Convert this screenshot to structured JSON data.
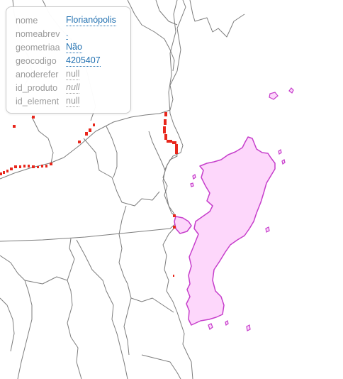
{
  "popup": {
    "rows": [
      {
        "key": "nome",
        "value": "Florianópolis"
      },
      {
        "key": "nomeabrev",
        "value": "."
      },
      {
        "key": "geometriaa",
        "value": "Não"
      },
      {
        "key": "geocodigo",
        "value": "4205407"
      },
      {
        "key": "anoderefer",
        "value": "null"
      },
      {
        "key": "id_produto",
        "value": "null"
      },
      {
        "key": "id_element",
        "value": "null"
      }
    ]
  },
  "map": {
    "colors": {
      "boundary": "#7a7a7a",
      "highlight_fill": "#fdd7fb",
      "highlight_stroke": "#c63ecb",
      "marker": "#e8271c"
    },
    "selected_feature": "Florianópolis"
  }
}
